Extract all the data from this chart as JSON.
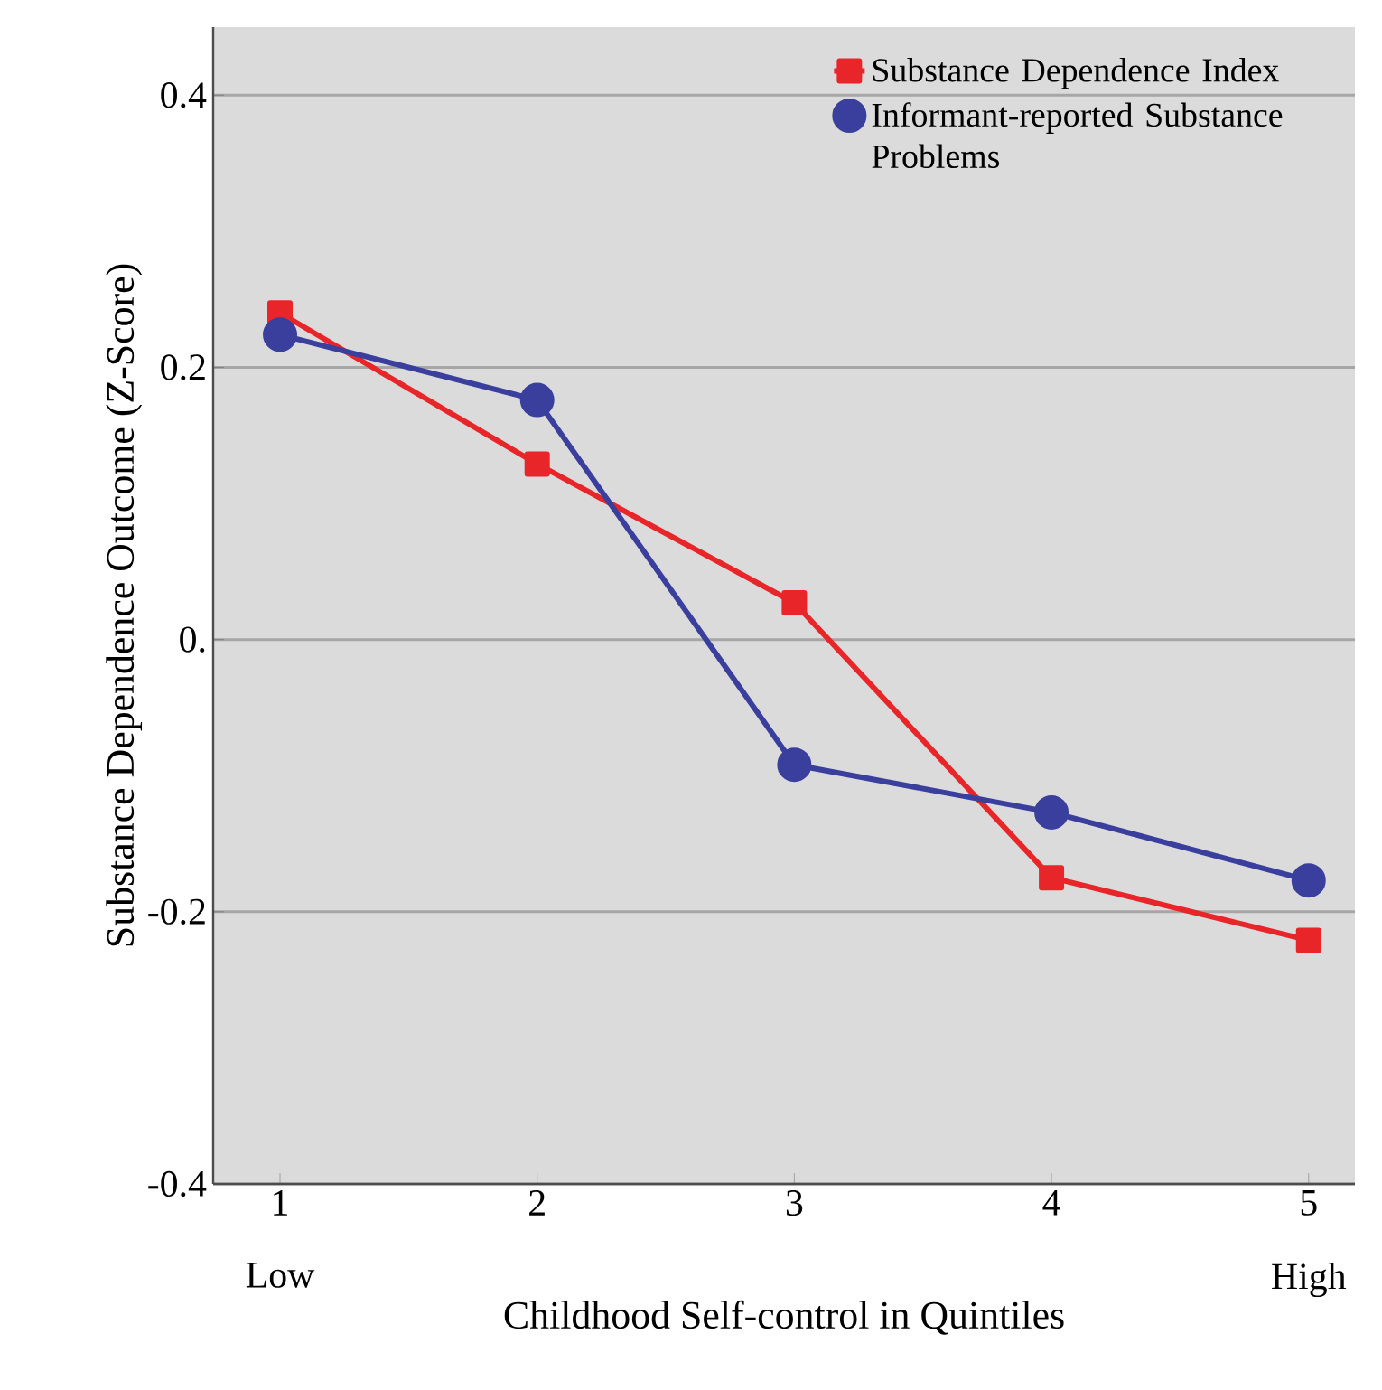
{
  "chart_data": {
    "type": "line",
    "xlabel": "Childhood Self-control in Quintiles",
    "ylabel": "Substance Dependence Outcome (Z-Score)",
    "x": [
      1,
      2,
      3,
      4,
      5
    ],
    "series": [
      {
        "name": "Substance Dependence Index",
        "color": "#e8262a",
        "marker": "square",
        "values": [
          0.24,
          0.129,
          0.027,
          -0.175,
          -0.221
        ]
      },
      {
        "name": "Informant-reported Substance Problems",
        "color": "#3a3f9e",
        "marker": "circle",
        "values": [
          0.224,
          0.176,
          -0.092,
          -0.127,
          -0.177
        ]
      }
    ],
    "xlim": [
      0.74,
      5.18
    ],
    "ylim": [
      -0.4,
      0.45
    ],
    "xticks": [
      1,
      2,
      3,
      4,
      5
    ],
    "yticks": [
      0.4,
      0.2,
      {
        "value": 0,
        "label": "0."
      },
      -0.2,
      -0.4
    ],
    "annotations": [
      "Low",
      "High"
    ],
    "grid": "y",
    "legend": "top right",
    "line_style": "solid"
  }
}
